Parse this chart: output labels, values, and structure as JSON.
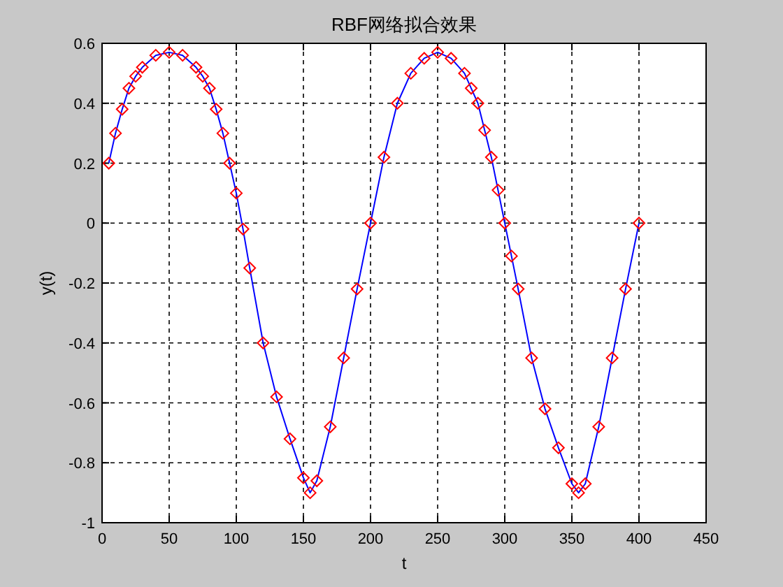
{
  "chart_data": {
    "type": "line",
    "title": "RBF网络拟合效果",
    "xlabel": "t",
    "ylabel": "y(t)",
    "x": [
      5,
      10,
      15,
      20,
      25,
      30,
      40,
      50,
      60,
      70,
      75,
      80,
      85,
      90,
      95,
      100,
      105,
      110,
      120,
      130,
      140,
      150,
      155,
      160,
      170,
      180,
      190,
      200,
      210,
      220,
      230,
      240,
      250,
      260,
      270,
      275,
      280,
      285,
      290,
      295,
      300,
      305,
      310,
      320,
      330,
      340,
      350,
      355,
      360,
      370,
      380,
      390,
      400
    ],
    "series": [
      {
        "type": "line",
        "color": "#0000ff",
        "marker": "none",
        "values": [
          0.2,
          0.3,
          0.38,
          0.45,
          0.49,
          0.52,
          0.56,
          0.57,
          0.56,
          0.52,
          0.49,
          0.45,
          0.38,
          0.3,
          0.2,
          0.1,
          -0.02,
          -0.15,
          -0.4,
          -0.58,
          -0.72,
          -0.85,
          -0.9,
          -0.86,
          -0.68,
          -0.45,
          -0.22,
          0.0,
          0.22,
          0.4,
          0.5,
          0.55,
          0.57,
          0.55,
          0.5,
          0.45,
          0.4,
          0.31,
          0.22,
          0.11,
          0.0,
          -0.11,
          -0.22,
          -0.45,
          -0.62,
          -0.75,
          -0.87,
          -0.9,
          -0.87,
          -0.68,
          -0.45,
          -0.22,
          0.0
        ]
      },
      {
        "type": "scatter",
        "color": "#ff0000",
        "marker": "diamond",
        "values": [
          0.2,
          0.3,
          0.38,
          0.45,
          0.49,
          0.52,
          0.56,
          0.57,
          0.56,
          0.52,
          0.49,
          0.45,
          0.38,
          0.3,
          0.2,
          0.1,
          -0.02,
          -0.15,
          -0.4,
          -0.58,
          -0.72,
          -0.85,
          -0.9,
          -0.86,
          -0.68,
          -0.45,
          -0.22,
          0.0,
          0.22,
          0.4,
          0.5,
          0.55,
          0.57,
          0.55,
          0.5,
          0.45,
          0.4,
          0.31,
          0.22,
          0.11,
          0.0,
          -0.11,
          -0.22,
          -0.45,
          -0.62,
          -0.75,
          -0.87,
          -0.9,
          -0.87,
          -0.68,
          -0.45,
          -0.22,
          0.0
        ]
      }
    ],
    "xlim": [
      0,
      450
    ],
    "ylim": [
      -1,
      0.6
    ],
    "xticks": [
      0,
      50,
      100,
      150,
      200,
      250,
      300,
      350,
      400,
      450
    ],
    "yticks": [
      -1,
      -0.8,
      -0.6,
      -0.4,
      -0.2,
      0,
      0.2,
      0.4,
      0.6
    ],
    "grid": true
  }
}
